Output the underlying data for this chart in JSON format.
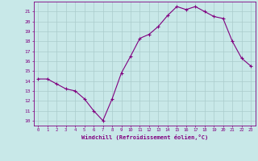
{
  "x": [
    0,
    1,
    2,
    3,
    4,
    5,
    6,
    7,
    8,
    9,
    10,
    11,
    12,
    13,
    14,
    15,
    16,
    17,
    18,
    19,
    20,
    21,
    22,
    23
  ],
  "y": [
    14.2,
    14.2,
    13.7,
    13.2,
    13.0,
    12.2,
    11.0,
    10.0,
    12.2,
    14.8,
    16.5,
    18.3,
    18.7,
    19.5,
    20.6,
    21.5,
    21.2,
    21.5,
    21.0,
    20.5,
    20.3,
    18.0,
    16.3,
    15.5
  ],
  "line_color": "#800080",
  "marker": "+",
  "bg_color": "#C8E8E8",
  "grid_color": "#aacccc",
  "xlabel": "Windchill (Refroidissement éolien,°C)",
  "xlabel_color": "#800080",
  "ylabel_ticks": [
    10,
    11,
    12,
    13,
    14,
    15,
    16,
    17,
    18,
    19,
    20,
    21
  ],
  "xtick_labels": [
    "0",
    "1",
    "2",
    "3",
    "4",
    "5",
    "6",
    "7",
    "8",
    "9",
    "10",
    "11",
    "12",
    "13",
    "14",
    "15",
    "16",
    "17",
    "18",
    "19",
    "20",
    "21",
    "22",
    "23"
  ],
  "xlim": [
    -0.5,
    23.5
  ],
  "ylim": [
    9.5,
    22.0
  ],
  "tick_color": "#800080",
  "spine_color": "#800080"
}
